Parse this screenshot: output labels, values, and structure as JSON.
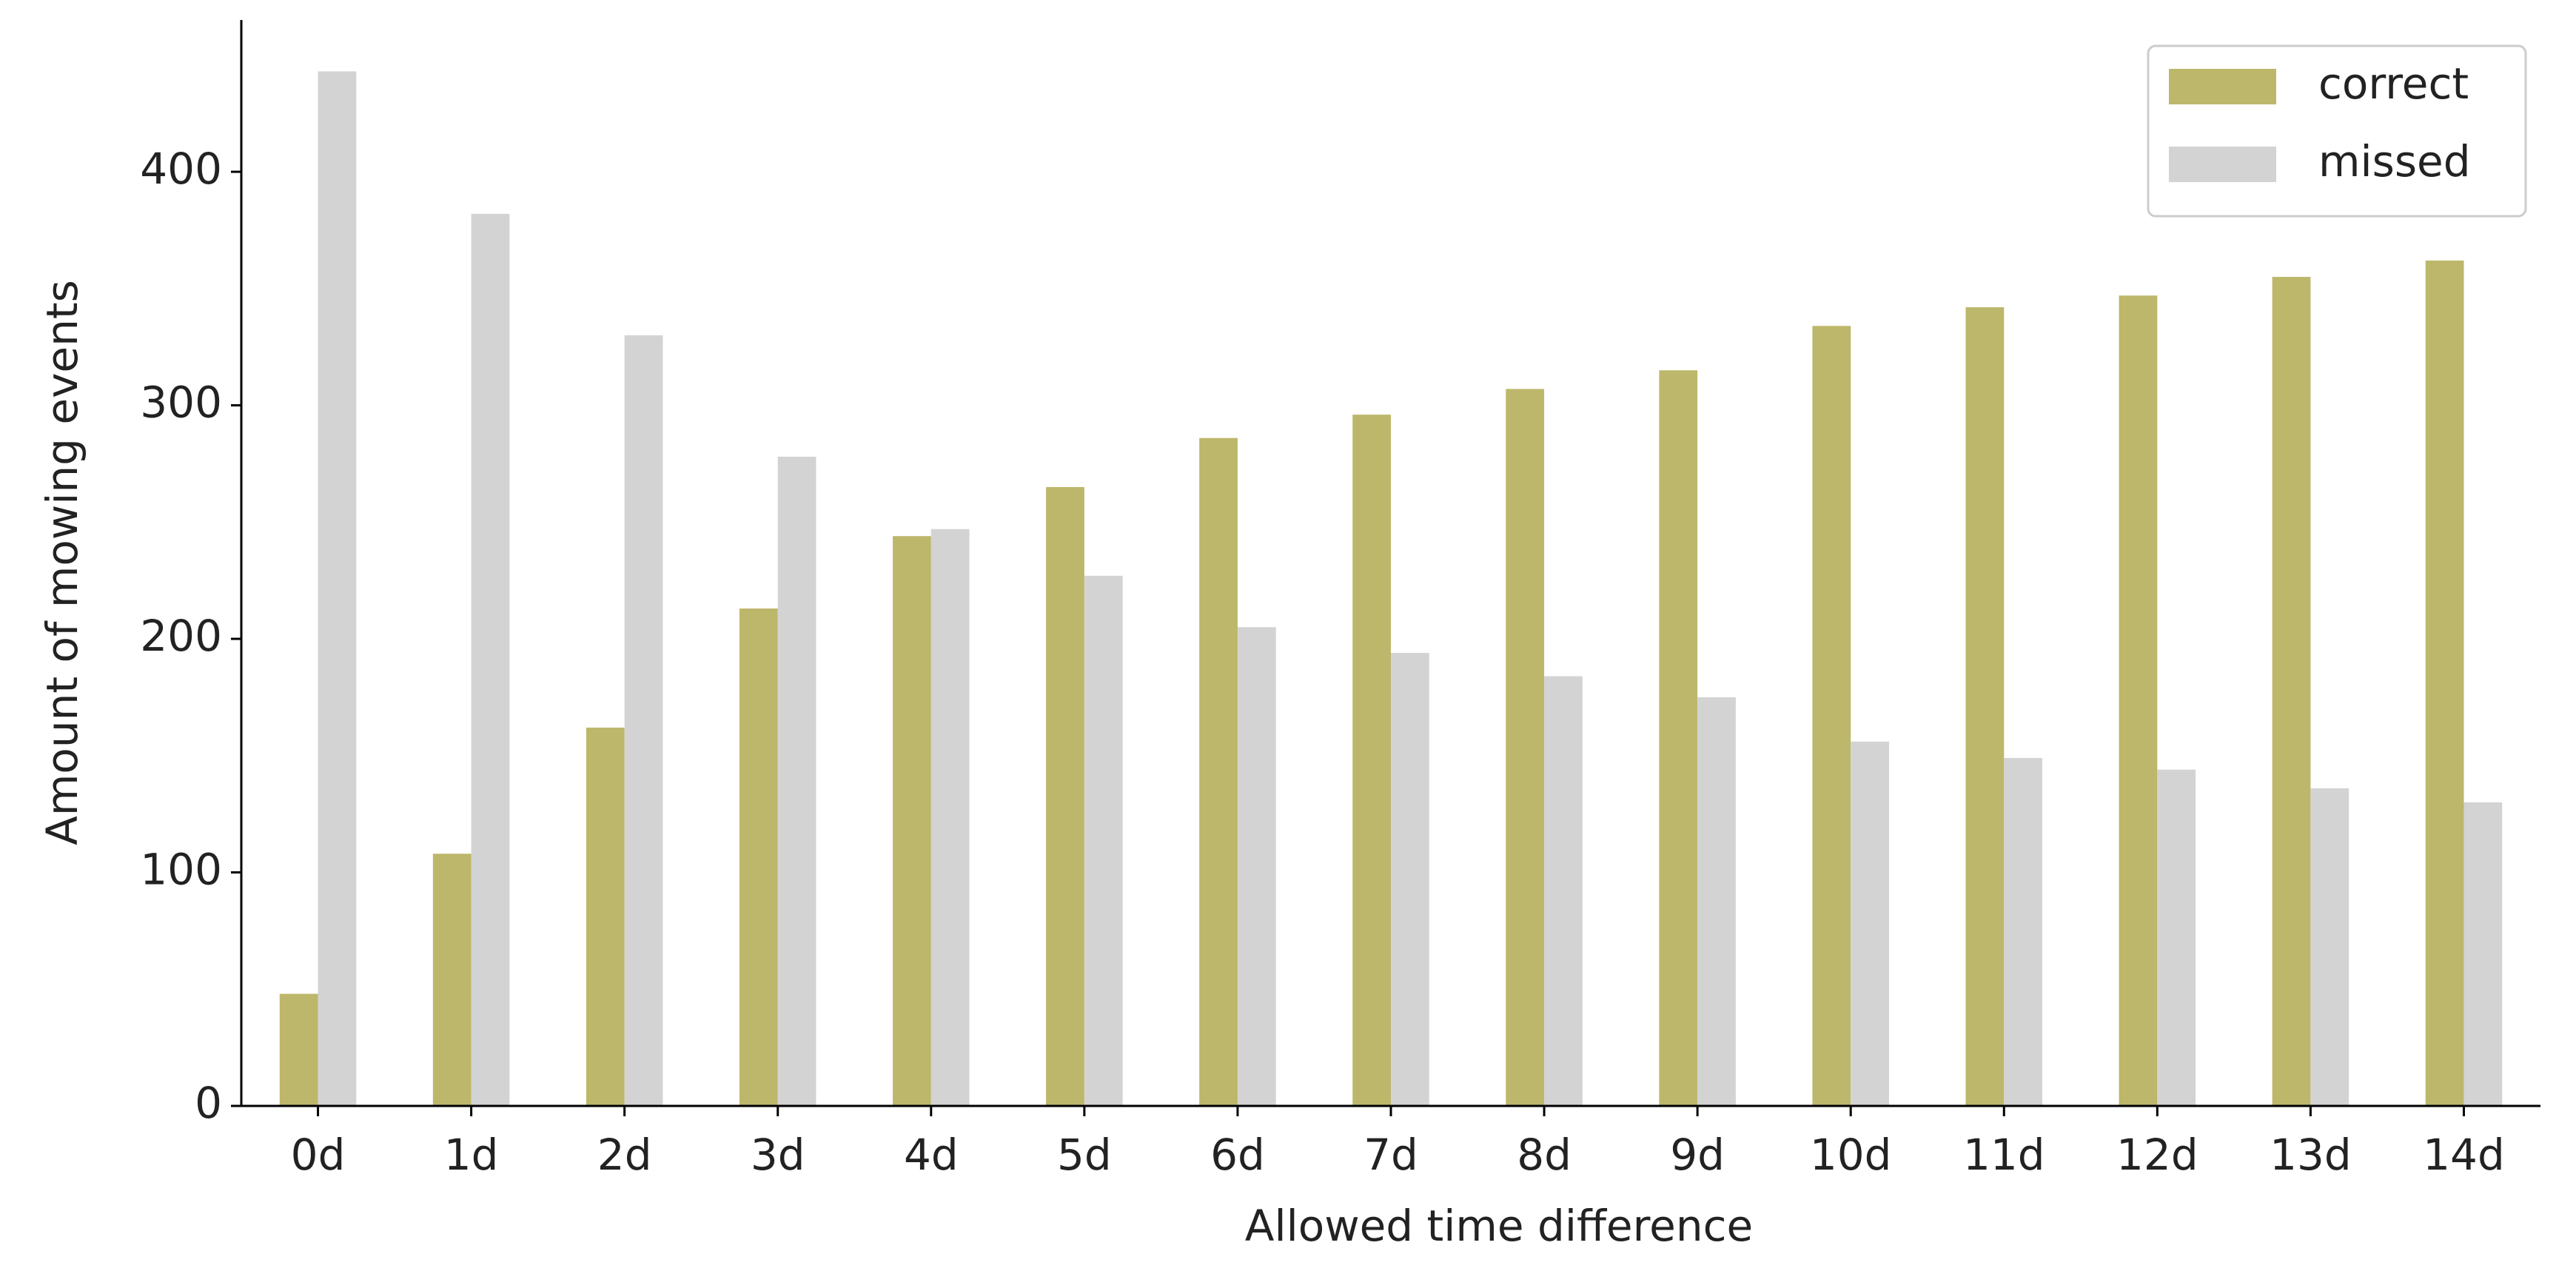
{
  "chart_data": {
    "type": "bar",
    "x_label": "Allowed time difference",
    "y_label": "Amount of mowing events",
    "categories": [
      "0d",
      "1d",
      "2d",
      "3d",
      "4d",
      "5d",
      "6d",
      "7d",
      "8d",
      "9d",
      "10d",
      "11d",
      "12d",
      "13d",
      "14d"
    ],
    "series": [
      {
        "name": "correct",
        "color": "#bdb76b",
        "values": [
          48,
          108,
          162,
          213,
          244,
          265,
          286,
          296,
          307,
          315,
          334,
          342,
          347,
          355,
          362
        ]
      },
      {
        "name": "missed",
        "color": "#d3d3d3",
        "values": [
          443,
          382,
          330,
          278,
          247,
          227,
          205,
          194,
          184,
          175,
          156,
          149,
          144,
          136,
          130
        ]
      }
    ],
    "ylim": [
      0,
      465
    ],
    "yticks": [
      0,
      100,
      200,
      300,
      400
    ],
    "legend": "upper right"
  }
}
